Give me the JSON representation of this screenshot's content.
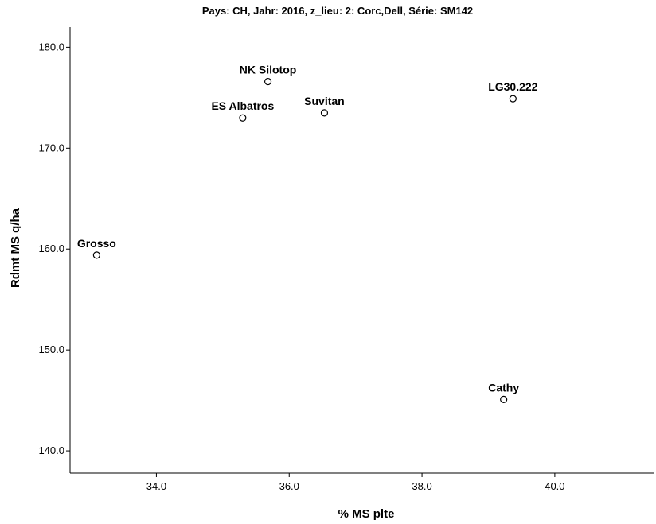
{
  "chart_data": {
    "type": "scatter",
    "title": "Pays: CH, Jahr: 2016, z_lieu: 2: Corc,Dell, Série: SM142",
    "xlabel": "% MS plte",
    "ylabel": "Rdmt MS q/ha",
    "xlim": [
      32.7,
      41.5
    ],
    "ylim": [
      137.8,
      182.0
    ],
    "x_ticks": [
      34.0,
      36.0,
      38.0,
      40.0
    ],
    "x_tick_labels": [
      "34.0",
      "36.0",
      "38.0",
      "40.0"
    ],
    "y_ticks": [
      140.0,
      150.0,
      160.0,
      170.0,
      180.0
    ],
    "y_tick_labels": [
      "140.0",
      "150.0",
      "160.0",
      "170.0",
      "180.0"
    ],
    "grid": false,
    "legend": false,
    "marker": "open-circle",
    "points": [
      {
        "label": "NK Silotop",
        "x": 35.68,
        "y": 176.6
      },
      {
        "label": "ES Albatros",
        "x": 35.3,
        "y": 173.0
      },
      {
        "label": "Suvitan",
        "x": 36.53,
        "y": 173.5
      },
      {
        "label": "LG30.222",
        "x": 39.37,
        "y": 174.9
      },
      {
        "label": "Grosso",
        "x": 33.1,
        "y": 159.4
      },
      {
        "label": "Cathy",
        "x": 39.23,
        "y": 145.1
      }
    ]
  }
}
